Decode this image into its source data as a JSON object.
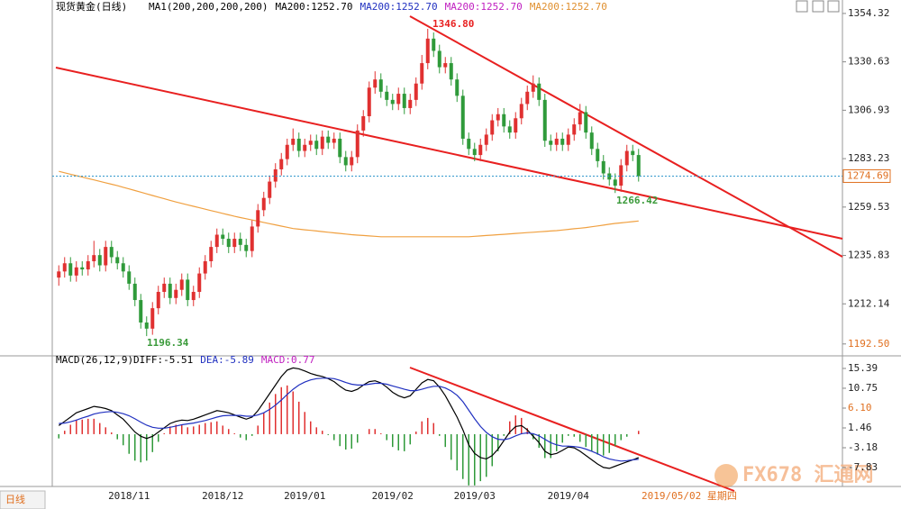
{
  "chart_data": [
    {
      "type": "candlestick",
      "title": "现货黄金(日线)",
      "legend": [
        {
          "label": "MA1(200,200,200,200)",
          "color": "#000000"
        },
        {
          "label": "MA200:1252.70",
          "color": "#000000"
        },
        {
          "label": "MA200:1252.70",
          "color": "#2030c0"
        },
        {
          "label": "MA200:1252.70",
          "color": "#c020c0"
        },
        {
          "label": "MA200:1252.70",
          "color": "#e09030"
        }
      ],
      "categories": [
        null,
        null,
        null,
        null,
        null,
        null,
        null,
        null,
        null,
        null,
        null,
        null,
        "2018/11",
        null,
        null,
        null,
        null,
        null,
        null,
        null,
        null,
        null,
        null,
        null,
        null,
        null,
        null,
        null,
        "2018/12",
        null,
        null,
        null,
        null,
        null,
        null,
        null,
        null,
        null,
        null,
        null,
        null,
        null,
        "2019/01",
        null,
        null,
        null,
        null,
        null,
        null,
        null,
        null,
        null,
        null,
        null,
        null,
        null,
        null,
        "2019/02",
        null,
        null,
        null,
        null,
        null,
        null,
        null,
        null,
        null,
        null,
        null,
        null,
        null,
        "2019/03",
        null,
        null,
        null,
        null,
        null,
        null,
        null,
        null,
        null,
        null,
        null,
        null,
        null,
        null,
        null,
        "2019/04",
        null,
        null,
        null,
        null,
        null,
        null,
        null,
        null,
        null,
        null,
        null,
        null
      ],
      "open": [
        1225,
        1228,
        1232,
        1226,
        1230,
        1229,
        1233,
        1236,
        1231,
        1240,
        1235,
        1232,
        1228,
        1222,
        1214,
        1203,
        1200,
        1210,
        1218,
        1222,
        1215,
        1219,
        1224,
        1214,
        1218,
        1227,
        1233,
        1240,
        1246,
        1244,
        1240,
        1244,
        1241,
        1238,
        1250,
        1258,
        1264,
        1272,
        1278,
        1283,
        1290,
        1293,
        1287,
        1290,
        1292,
        1288,
        1294,
        1291,
        1293,
        1284,
        1280,
        1284,
        1297,
        1304,
        1318,
        1322,
        1316,
        1312,
        1310,
        1315,
        1308,
        1312,
        1320,
        1330,
        1342,
        1336,
        1328,
        1330,
        1322,
        1314,
        1293,
        1288,
        1285,
        1290,
        1295,
        1302,
        1305,
        1299,
        1296,
        1303,
        1310,
        1316,
        1320,
        1312,
        1292,
        1290,
        1293,
        1290,
        1295,
        1300,
        1306,
        1296,
        1288,
        1282,
        1276,
        1273,
        1270,
        1280,
        1287,
        1285
      ],
      "high": [
        1231,
        1235,
        1235,
        1233,
        1233,
        1236,
        1243,
        1239,
        1243,
        1243,
        1238,
        1235,
        1231,
        1225,
        1217,
        1206,
        1213,
        1221,
        1225,
        1225,
        1222,
        1227,
        1227,
        1221,
        1230,
        1236,
        1243,
        1249,
        1249,
        1247,
        1247,
        1247,
        1244,
        1253,
        1261,
        1267,
        1275,
        1281,
        1286,
        1293,
        1298,
        1296,
        1293,
        1295,
        1295,
        1297,
        1297,
        1296,
        1296,
        1287,
        1287,
        1300,
        1307,
        1321,
        1326,
        1325,
        1319,
        1315,
        1318,
        1318,
        1315,
        1323,
        1334,
        1346.8,
        1345,
        1339,
        1333,
        1333,
        1325,
        1317,
        1296,
        1291,
        1293,
        1298,
        1305,
        1308,
        1308,
        1302,
        1306,
        1313,
        1319,
        1324,
        1323,
        1315,
        1295,
        1296,
        1296,
        1298,
        1303,
        1310,
        1309,
        1299,
        1291,
        1285,
        1279,
        1276,
        1283,
        1290,
        1290,
        1288
      ],
      "low": [
        1221,
        1225,
        1223,
        1223,
        1226,
        1226,
        1230,
        1228,
        1228,
        1232,
        1229,
        1225,
        1219,
        1211,
        1200,
        1196.34,
        1197,
        1207,
        1215,
        1212,
        1212,
        1216,
        1211,
        1211,
        1215,
        1224,
        1230,
        1237,
        1241,
        1237,
        1237,
        1238,
        1235,
        1235,
        1247,
        1255,
        1261,
        1269,
        1275,
        1280,
        1287,
        1284,
        1284,
        1287,
        1285,
        1285,
        1288,
        1288,
        1281,
        1277,
        1277,
        1281,
        1294,
        1301,
        1315,
        1313,
        1309,
        1307,
        1307,
        1305,
        1305,
        1309,
        1317,
        1327,
        1333,
        1325,
        1325,
        1319,
        1311,
        1290,
        1285,
        1282,
        1282,
        1287,
        1292,
        1299,
        1296,
        1293,
        1293,
        1300,
        1307,
        1313,
        1309,
        1289,
        1287,
        1287,
        1287,
        1287,
        1292,
        1297,
        1293,
        1285,
        1279,
        1273,
        1270,
        1266.42,
        1267,
        1277,
        1282,
        1272
      ],
      "close": [
        1228,
        1232,
        1226,
        1230,
        1229,
        1233,
        1236,
        1231,
        1240,
        1235,
        1232,
        1228,
        1222,
        1214,
        1203,
        1200,
        1210,
        1218,
        1222,
        1215,
        1219,
        1224,
        1214,
        1218,
        1227,
        1233,
        1240,
        1246,
        1244,
        1240,
        1244,
        1241,
        1238,
        1250,
        1258,
        1264,
        1272,
        1278,
        1283,
        1290,
        1293,
        1287,
        1290,
        1292,
        1288,
        1294,
        1291,
        1293,
        1284,
        1280,
        1284,
        1297,
        1304,
        1318,
        1322,
        1316,
        1312,
        1310,
        1315,
        1308,
        1312,
        1320,
        1330,
        1342,
        1336,
        1328,
        1330,
        1322,
        1314,
        1293,
        1288,
        1285,
        1290,
        1295,
        1302,
        1305,
        1299,
        1296,
        1303,
        1310,
        1316,
        1320,
        1312,
        1292,
        1290,
        1293,
        1290,
        1295,
        1300,
        1306,
        1296,
        1288,
        1282,
        1276,
        1273,
        1270,
        1280,
        1287,
        1285,
        1274.69
      ],
      "ma200": [
        1277,
        1276.3,
        1275.6,
        1274.9,
        1274.2,
        1273.5,
        1272.8,
        1272.1,
        1271.4,
        1270.7,
        1270,
        1269.2,
        1268.4,
        1267.6,
        1266.8,
        1266,
        1265.2,
        1264.4,
        1263.6,
        1262.8,
        1262,
        1261.3,
        1260.6,
        1259.9,
        1259.2,
        1258.5,
        1257.8,
        1257.1,
        1256.4,
        1255.7,
        1255,
        1254.4,
        1253.8,
        1253.2,
        1252.6,
        1252,
        1251.4,
        1250.8,
        1250.2,
        1249.6,
        1249,
        1248.7,
        1248.4,
        1248.1,
        1247.8,
        1247.5,
        1247.2,
        1246.9,
        1246.6,
        1246.3,
        1246,
        1245.8,
        1245.6,
        1245.4,
        1245.2,
        1245,
        1245,
        1245,
        1245,
        1245,
        1245,
        1245,
        1245,
        1245,
        1245,
        1245,
        1245,
        1245,
        1245,
        1245,
        1245,
        1245.2,
        1245.4,
        1245.6,
        1245.8,
        1246,
        1246.2,
        1246.4,
        1246.6,
        1246.8,
        1247,
        1247.2,
        1247.4,
        1247.6,
        1247.8,
        1248,
        1248.3,
        1248.6,
        1248.9,
        1249.2,
        1249.5,
        1249.9,
        1250.3,
        1250.7,
        1251.1,
        1251.5,
        1251.8,
        1252.1,
        1252.4,
        1252.7
      ],
      "ma_color": "#f0a040",
      "up_color": "#e03030",
      "down_color": "#2f9a3a",
      "last_price": 1274.69,
      "annotations": [
        "1346.80",
        "1196.34",
        "1266.42"
      ],
      "ylim": [
        1188,
        1358.7
      ],
      "yticks": [
        1354.32,
        1330.63,
        1306.93,
        1283.23,
        1259.53,
        1235.83,
        1212.14,
        {
          "value": 1192.5,
          "label": "1192.50"
        }
      ]
    },
    {
      "type": "macd",
      "title": "MACD(26,12,9)",
      "legend": [
        {
          "label": "DIFF:-5.51",
          "color": "#000000"
        },
        {
          "label": "DEA:-5.89",
          "color": "#2030c0"
        },
        {
          "label": "MACD:0.77",
          "color": "#c020c0"
        }
      ],
      "diff": [
        2,
        3,
        4,
        5,
        5.5,
        6,
        6.5,
        6.3,
        6,
        5.5,
        4.5,
        3.5,
        2,
        0.5,
        -0.5,
        -1,
        -0.5,
        0.5,
        1.5,
        2.5,
        3,
        3.3,
        3.2,
        3.5,
        4,
        4.5,
        5,
        5.5,
        5.3,
        5,
        4.5,
        4,
        3.5,
        4,
        5.5,
        7.5,
        9.5,
        11.5,
        13.5,
        15,
        15.5,
        15.3,
        14.8,
        14.2,
        13.8,
        13.5,
        13,
        12.3,
        11.2,
        10.3,
        10,
        10.5,
        11.5,
        12.3,
        12.5,
        12,
        11,
        9.8,
        9,
        8.5,
        9,
        10.5,
        12,
        12.8,
        12.5,
        11,
        9,
        6.5,
        4,
        1,
        -2.5,
        -4.5,
        -5.5,
        -5.8,
        -5,
        -3.5,
        -1.5,
        0.5,
        1.8,
        2,
        1,
        -0.5,
        -2,
        -4,
        -4.8,
        -4.5,
        -3.8,
        -3,
        -3.2,
        -4,
        -5,
        -6,
        -7,
        -7.8,
        -8,
        -7.5,
        -7,
        -6.5,
        -6,
        -5.51
      ],
      "dea": [
        2.5,
        2.6,
        2.9,
        3.3,
        3.8,
        4.2,
        4.7,
        5,
        5.2,
        5.3,
        5.1,
        4.8,
        4.3,
        3.6,
        2.8,
        2.1,
        1.6,
        1.4,
        1.4,
        1.6,
        1.9,
        2.2,
        2.4,
        2.6,
        2.9,
        3.2,
        3.6,
        4,
        4.3,
        4.4,
        4.4,
        4.4,
        4.2,
        4.2,
        4.5,
        5,
        5.8,
        6.8,
        8,
        9.3,
        10.5,
        11.5,
        12.2,
        12.7,
        13,
        13.1,
        13.1,
        13,
        12.6,
        12.1,
        11.7,
        11.5,
        11.5,
        11.7,
        11.9,
        11.9,
        11.7,
        11.3,
        10.9,
        10.5,
        10.2,
        10.2,
        10.5,
        10.9,
        11.2,
        11.2,
        10.8,
        10.1,
        9.1,
        7.6,
        5.6,
        3.6,
        1.8,
        0.4,
        -0.6,
        -1.2,
        -1.3,
        -1,
        -0.4,
        0.1,
        0.3,
        0.1,
        -0.4,
        -1.2,
        -2,
        -2.5,
        -2.8,
        -2.8,
        -2.9,
        -3.1,
        -3.5,
        -4,
        -4.6,
        -5.3,
        -5.8,
        -6.1,
        -6.3,
        -6.2,
        -6,
        -5.89
      ],
      "hist": [
        -1,
        0.8,
        2.2,
        3.4,
        3.4,
        3.6,
        3.6,
        2.6,
        1.6,
        0.4,
        -1.2,
        -2.6,
        -4.6,
        -6.2,
        -6.6,
        -6.2,
        -4.2,
        -1.8,
        0.2,
        1.8,
        2.2,
        2.2,
        1.6,
        1.8,
        2.2,
        2.6,
        2.8,
        3,
        2,
        1.2,
        0.2,
        -0.8,
        -1.4,
        -0.4,
        2,
        5,
        7.4,
        9.4,
        11,
        11.4,
        10,
        7.6,
        5.2,
        3,
        1.6,
        0.8,
        -0.2,
        -1.4,
        -2.8,
        -3.6,
        -3.4,
        -2,
        0,
        1.2,
        1.2,
        0.2,
        -1.4,
        -3,
        -3.8,
        -4,
        -2.4,
        0.6,
        3,
        3.8,
        2.6,
        -0.4,
        -3,
        -6,
        -8.5,
        -10.5,
        -12,
        -12,
        -11,
        -10,
        -7.5,
        -4,
        -0.4,
        3,
        4.4,
        3.8,
        1.4,
        -1.2,
        -3.2,
        -5.6,
        -5.6,
        -4,
        -2,
        -0.4,
        -0.6,
        -1.8,
        -3,
        -4,
        -4.8,
        -5,
        -4.4,
        -2.8,
        -1.4,
        -0.6,
        0,
        0.77
      ],
      "diff_color": "#000000",
      "dea_color": "#2030c0",
      "up_color": "#e03030",
      "down_color": "#2f9a3a",
      "ylim": [
        -12.25,
        17.28
      ],
      "yticks": [
        15.39,
        10.75,
        {
          "value": 6.1,
          "label": "6.10"
        },
        1.46,
        -3.18,
        -7.83
      ]
    }
  ],
  "footer": {
    "period": "日线",
    "cursor_date": "2019/05/02 星期四"
  },
  "watermark": "FX678 汇通网"
}
